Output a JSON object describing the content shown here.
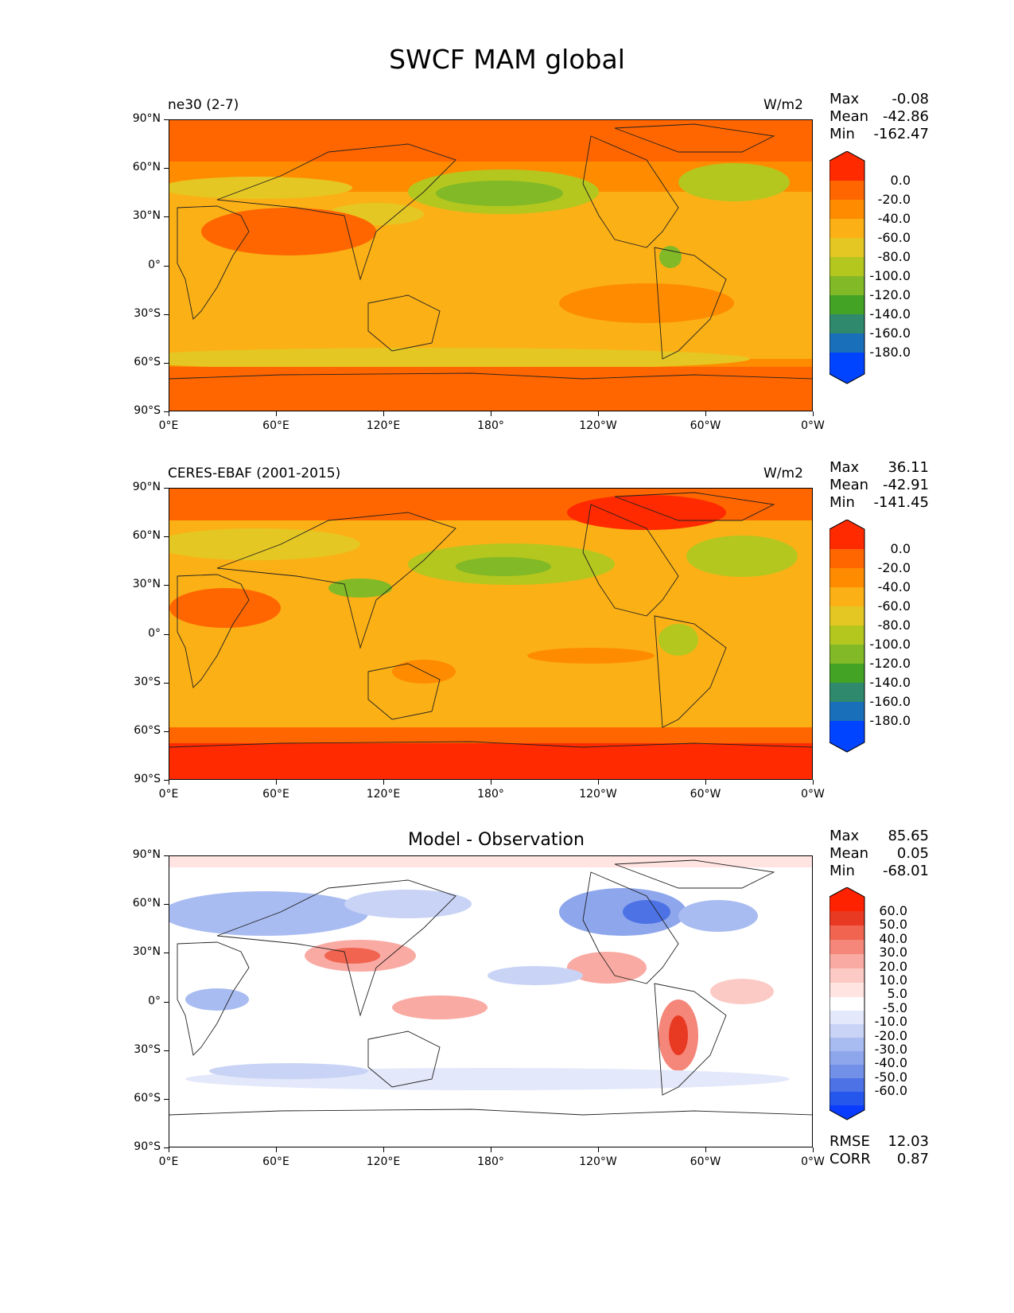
{
  "title": "SWCF MAM global",
  "colors": {
    "fill_levels": [
      "#ff2a00",
      "#ff6600",
      "#ff8c00",
      "#fbb016",
      "#e5c723",
      "#b3c71f",
      "#82b926",
      "#42a325",
      "#2f8a6d",
      "#1a6fba",
      "#0044ff"
    ],
    "diff_levels": [
      "#ff2200",
      "#e83a22",
      "#f06450",
      "#f5877a",
      "#f9aaa3",
      "#fccac5",
      "#ffe4e1",
      "#ffffff",
      "#e3e8fa",
      "#c8d3f6",
      "#a9bcf1",
      "#8ea6ec",
      "#7290e8",
      "#4c72e6",
      "#2657ec",
      "#0a3cff"
    ],
    "coast": "#222222"
  },
  "panels": [
    {
      "left_title": "ne30 (2-7)",
      "units": "W/m2",
      "center_title": "",
      "stats": {
        "max_label": "Max",
        "max": "-0.08",
        "mean_label": "Mean",
        "mean": "-42.86",
        "min_label": "Min",
        "min": "-162.47"
      },
      "colorbar": {
        "labels": [
          "0.0",
          "-20.0",
          "-40.0",
          "-60.0",
          "-80.0",
          "-100.0",
          "-120.0",
          "-140.0",
          "-160.0",
          "-180.0"
        ]
      }
    },
    {
      "left_title": "CERES-EBAF (2001-2015)",
      "units": "W/m2",
      "center_title": "",
      "stats": {
        "max_label": "Max",
        "max": "36.11",
        "mean_label": "Mean",
        "mean": "-42.91",
        "min_label": "Min",
        "min": "-141.45"
      },
      "colorbar": {
        "labels": [
          "0.0",
          "-20.0",
          "-40.0",
          "-60.0",
          "-80.0",
          "-100.0",
          "-120.0",
          "-140.0",
          "-160.0",
          "-180.0"
        ]
      }
    },
    {
      "left_title": "",
      "units": "",
      "center_title": "Model - Observation",
      "stats": {
        "max_label": "Max",
        "max": "85.65",
        "mean_label": "Mean",
        "mean": "0.05",
        "min_label": "Min",
        "min": "-68.01"
      },
      "colorbar": {
        "labels": [
          "60.0",
          "50.0",
          "40.0",
          "30.0",
          "20.0",
          "10.0",
          "5.0",
          "-5.0",
          "-10.0",
          "-20.0",
          "-30.0",
          "-40.0",
          "-50.0",
          "-60.0"
        ]
      },
      "metrics": {
        "rmse_label": "RMSE",
        "rmse": "12.03",
        "corr_label": "CORR",
        "corr": "0.87"
      }
    }
  ],
  "axes": {
    "y_ticks": [
      "90°N",
      "60°N",
      "30°N",
      "0°",
      "30°S",
      "60°S",
      "90°S"
    ],
    "x_ticks": [
      "0°E",
      "60°E",
      "120°E",
      "180°",
      "120°W",
      "60°W",
      "0°W"
    ]
  },
  "chart_data": [
    {
      "type": "heatmap",
      "title": "ne30 (2-7)",
      "units": "W/m2",
      "xlim": [
        0,
        360
      ],
      "ylim": [
        -90,
        90
      ],
      "max": -0.08,
      "mean": -42.86,
      "min": -162.47,
      "levels": [
        0,
        -20,
        -40,
        -60,
        -80,
        -100,
        -120,
        -140,
        -160,
        -180
      ]
    },
    {
      "type": "heatmap",
      "title": "CERES-EBAF (2001-2015)",
      "units": "W/m2",
      "xlim": [
        0,
        360
      ],
      "ylim": [
        -90,
        90
      ],
      "max": 36.11,
      "mean": -42.91,
      "min": -141.45,
      "levels": [
        0,
        -20,
        -40,
        -60,
        -80,
        -100,
        -120,
        -140,
        -160,
        -180
      ]
    },
    {
      "type": "heatmap",
      "title": "Model - Observation",
      "xlim": [
        0,
        360
      ],
      "ylim": [
        -90,
        90
      ],
      "max": 85.65,
      "mean": 0.05,
      "min": -68.01,
      "rmse": 12.03,
      "corr": 0.87,
      "levels": [
        60,
        50,
        40,
        30,
        20,
        10,
        5,
        -5,
        -10,
        -20,
        -30,
        -40,
        -50,
        -60
      ]
    }
  ]
}
